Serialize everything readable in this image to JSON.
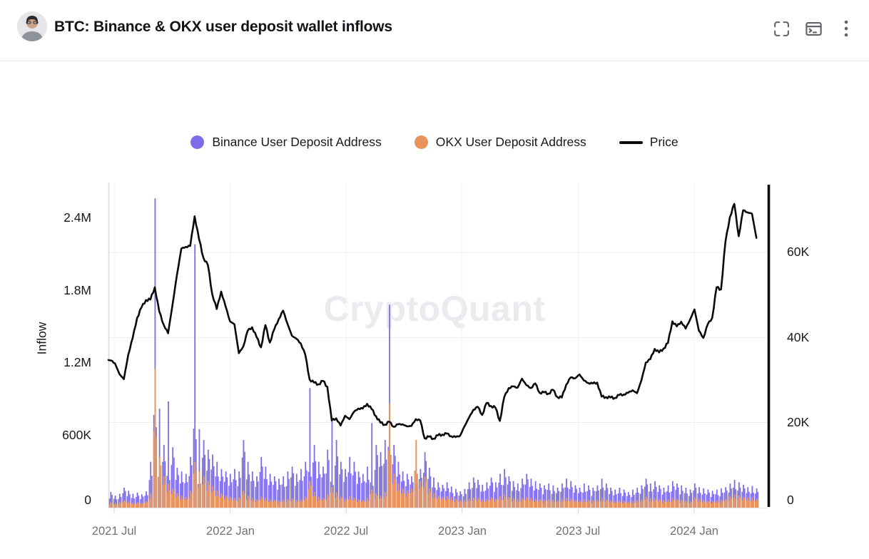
{
  "header": {
    "title": "BTC: Binance & OKX user deposit wallet inflows",
    "actions": [
      {
        "name": "fullscreen",
        "icon": "fullscreen-icon"
      },
      {
        "name": "console",
        "icon": "terminal-window-icon"
      },
      {
        "name": "more",
        "icon": "kebab-menu-icon"
      }
    ]
  },
  "watermark": "CryptoQuant",
  "legend": {
    "items": [
      {
        "label": "Binance User Deposit Address",
        "color": "#7d6ce8",
        "swatch": "dot"
      },
      {
        "label": "OKX User Deposit Address",
        "color": "#e8935c",
        "swatch": "dot"
      },
      {
        "label": "Price",
        "color": "#0b0b0c",
        "swatch": "line"
      }
    ]
  },
  "chart_data": {
    "type": "mixed",
    "x_start": "2021-06-28",
    "x_interval": "weekly",
    "x_axis": {
      "ticks": [
        "2021 Jul",
        "2022 Jan",
        "2022 Jul",
        "2023 Jan",
        "2023 Jul",
        "2024 Jan"
      ]
    },
    "left_axis": {
      "label": "Inflow",
      "ticks": [
        "2.4M",
        "1.8M",
        "1.2M",
        "600K",
        "0"
      ],
      "range": [
        0,
        2700000
      ],
      "unit": "BTC inflow"
    },
    "right_axis": {
      "ticks": [
        "60K",
        "40K",
        "20K",
        "0"
      ],
      "range": [
        0,
        76000
      ],
      "unit": "USD"
    },
    "grid": {
      "horizontal": true,
      "vertical": true
    },
    "series": [
      {
        "name": "Binance User Deposit Address",
        "type": "bar",
        "color": "#7d6ce8",
        "unit": "thousands",
        "values": [
          130,
          100,
          115,
          165,
          140,
          115,
          125,
          110,
          135,
          380,
          2560,
          820,
          520,
          880,
          500,
          330,
          300,
          280,
          420,
          2180,
          650,
          560,
          480,
          440,
          380,
          320,
          300,
          280,
          320,
          300,
          560,
          380,
          300,
          260,
          420,
          340,
          280,
          260,
          240,
          260,
          300,
          340,
          280,
          320,
          380,
          990,
          520,
          380,
          340,
          480,
          720,
          560,
          380,
          320,
          420,
          380,
          300,
          280,
          340,
          700,
          520,
          460,
          560,
          1680,
          520,
          380,
          300,
          280,
          260,
          300,
          320,
          460,
          330,
          250,
          210,
          190,
          210,
          175,
          155,
          135,
          155,
          210,
          250,
          230,
          190,
          210,
          250,
          210,
          280,
          320,
          260,
          220,
          200,
          240,
          280,
          240,
          220,
          200,
          185,
          200,
          185,
          165,
          200,
          240,
          220,
          185,
          165,
          200,
          185,
          165,
          185,
          240,
          200,
          165,
          150,
          165,
          150,
          130,
          150,
          165,
          185,
          240,
          200,
          220,
          185,
          165,
          185,
          220,
          200,
          185,
          165,
          150,
          200,
          170,
          160,
          150,
          140,
          150,
          160,
          170,
          200,
          230,
          210,
          190,
          170,
          180,
          160
        ]
      },
      {
        "name": "OKX User Deposit Address",
        "type": "bar",
        "color": "#e8935c",
        "unit": "thousands",
        "values": [
          45,
          38,
          48,
          62,
          52,
          42,
          46,
          40,
          56,
          120,
          1150,
          420,
          260,
          200,
          160,
          120,
          100,
          90,
          140,
          380,
          300,
          260,
          220,
          180,
          140,
          120,
          100,
          90,
          80,
          85,
          140,
          100,
          80,
          70,
          90,
          80,
          70,
          65,
          60,
          65,
          70,
          75,
          65,
          70,
          90,
          220,
          130,
          90,
          80,
          110,
          170,
          130,
          90,
          75,
          95,
          85,
          70,
          65,
          80,
          150,
          120,
          100,
          130,
          860,
          280,
          200,
          160,
          140,
          160,
          560,
          220,
          260,
          160,
          120,
          100,
          90,
          95,
          85,
          75,
          60,
          65,
          75,
          85,
          80,
          70,
          75,
          85,
          75,
          95,
          110,
          90,
          80,
          70,
          80,
          90,
          80,
          75,
          70,
          65,
          70,
          65,
          60,
          70,
          80,
          75,
          65,
          60,
          70,
          65,
          60,
          65,
          80,
          70,
          60,
          55,
          60,
          55,
          50,
          55,
          60,
          65,
          90,
          75,
          80,
          70,
          62,
          68,
          80,
          72,
          66,
          60,
          55,
          85,
          70,
          64,
          58,
          55,
          60,
          66,
          72,
          95,
          110,
          100,
          90,
          80,
          85,
          75
        ]
      },
      {
        "name": "Price",
        "type": "line",
        "color": "#0b0b0c",
        "unit": "thousand USD",
        "values": [
          34.7,
          33.9,
          31.4,
          30.2,
          36,
          39.9,
          44.6,
          47.1,
          48.8,
          48.9,
          51.8,
          46.1,
          43,
          41,
          47.7,
          54.7,
          60.9,
          61.3,
          61.5,
          68.5,
          63.1,
          58.7,
          57,
          50.1,
          46.7,
          50.8,
          47.3,
          43.8,
          43.1,
          36.3,
          37.9,
          41.6,
          42.4,
          40.1,
          37.7,
          42.9,
          38.8,
          41.9,
          44.3,
          46.3,
          43.2,
          40.4,
          39.7,
          38.6,
          36,
          30.1,
          29.4,
          29,
          29.8,
          28.4,
          20.5,
          21,
          19.3,
          21.6,
          20.8,
          22.5,
          23.3,
          23.3,
          24.4,
          23.2,
          21.5,
          20,
          19.5,
          20.2,
          19,
          19.6,
          19.6,
          19.1,
          19.2,
          20.8,
          20.5,
          16.3,
          16.7,
          16.2,
          17,
          17.2,
          17.4,
          16.8,
          16.6,
          16.9,
          19.1,
          21.1,
          23,
          23.7,
          21.8,
          24.6,
          23.9,
          23.5,
          20.4,
          26,
          28.1,
          28.5,
          28.2,
          30.3,
          28.8,
          28.1,
          29.2,
          27,
          27.1,
          26.8,
          27.7,
          26,
          25.9,
          28.9,
          30.6,
          30.4,
          31.3,
          29.9,
          29.3,
          29.2,
          29.4,
          26.1,
          26,
          25.9,
          25.8,
          26.5,
          26.6,
          27,
          27.6,
          26.9,
          29.9,
          34.1,
          34.9,
          37.3,
          36.5,
          37.4,
          38.7,
          43.8,
          42.6,
          43.7,
          42.1,
          44.2,
          46.6,
          41.6,
          39.9,
          43.1,
          44.6,
          51.8,
          51.3,
          62.5,
          68.3,
          71.4,
          63.8,
          69.9,
          69.4,
          69.1,
          63.4
        ]
      }
    ]
  }
}
